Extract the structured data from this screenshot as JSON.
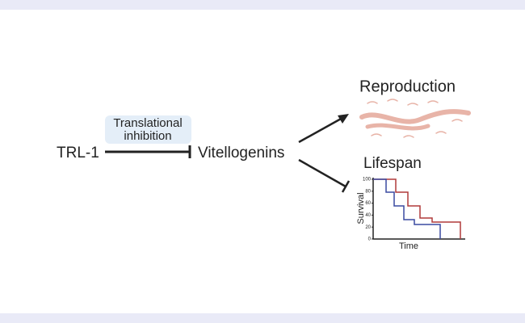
{
  "diagram": {
    "source": "TRL-1",
    "edge_label": [
      "Translational",
      "inhibition"
    ],
    "target": "Vitellogenins",
    "outcomes": [
      "Reproduction",
      "Lifespan"
    ],
    "inset_chart": {
      "ylabel": "Survival",
      "xlabel": "Time",
      "ylim": [
        0,
        100
      ],
      "yticks": [
        0,
        20,
        40,
        60,
        80,
        100
      ]
    }
  }
}
